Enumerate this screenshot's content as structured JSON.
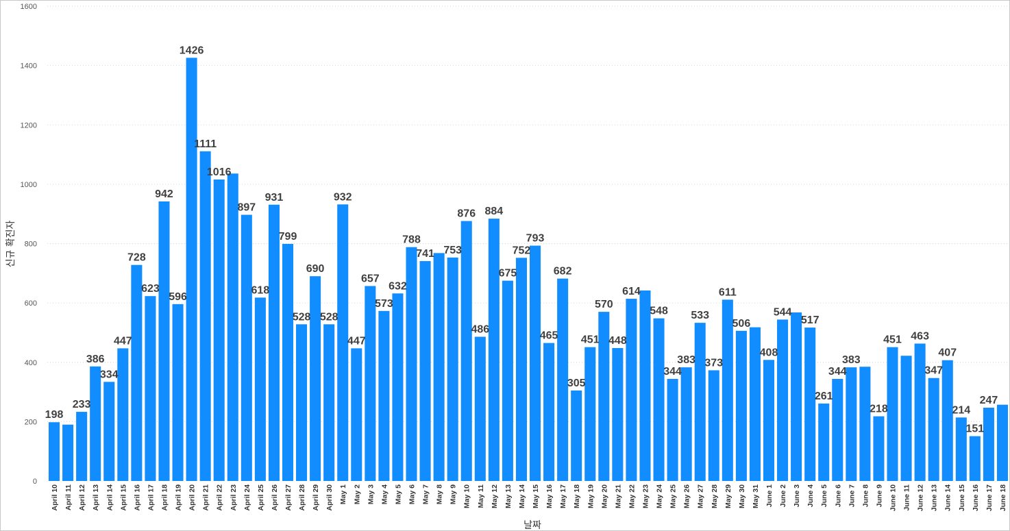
{
  "chart_data": {
    "type": "bar",
    "xlabel": "날짜",
    "ylabel": "신규 확진자",
    "ylim": [
      0,
      1600
    ],
    "yticks": [
      0,
      200,
      400,
      600,
      800,
      1000,
      1200,
      1400,
      1600
    ],
    "grid": true,
    "bar_color": "#118DFF",
    "categories": [
      "April 10",
      "April 11",
      "April 12",
      "April 13",
      "April 14",
      "April 15",
      "April 16",
      "April 17",
      "April 18",
      "April 19",
      "April 20",
      "April 21",
      "April 22",
      "April 23",
      "April 24",
      "April 25",
      "April 26",
      "April 27",
      "April 28",
      "April 29",
      "April 30",
      "May 1",
      "May 2",
      "May 3",
      "May 4",
      "May 5",
      "May 6",
      "May 7",
      "May 8",
      "May 9",
      "May 10",
      "May 11",
      "May 12",
      "May 13",
      "May 14",
      "May 15",
      "May 16",
      "May 17",
      "May 18",
      "May 19",
      "May 20",
      "May 21",
      "May 22",
      "May 23",
      "May 24",
      "May 25",
      "May 26",
      "May 27",
      "May 28",
      "May 29",
      "May 30",
      "May 31",
      "June 1",
      "June 2",
      "June 3",
      "June 4",
      "June 5",
      "June 6",
      "June 7",
      "June 8",
      "June 9",
      "June 10",
      "June 11",
      "June 12",
      "June 13",
      "June 14",
      "June 15",
      "June 16",
      "June 17",
      "June 18"
    ],
    "values": [
      198,
      190,
      233,
      386,
      334,
      447,
      728,
      623,
      942,
      596,
      1426,
      1111,
      1016,
      1036,
      897,
      618,
      931,
      799,
      528,
      690,
      528,
      932,
      447,
      657,
      573,
      632,
      788,
      741,
      768,
      753,
      876,
      486,
      884,
      675,
      752,
      793,
      465,
      682,
      305,
      451,
      570,
      448,
      614,
      642,
      548,
      344,
      383,
      533,
      373,
      611,
      506,
      518,
      408,
      544,
      568,
      517,
      261,
      344,
      383,
      385,
      218,
      451,
      422,
      463,
      347,
      407,
      214,
      151,
      247,
      257
    ],
    "data_labels": [
      "198",
      "",
      "233",
      "386",
      "334",
      "447",
      "728",
      "623",
      "942",
      "596",
      "1426",
      "1111",
      "1016",
      "",
      "897",
      "618",
      "931",
      "799",
      "528",
      "690",
      "528",
      "932",
      "447",
      "657",
      "573",
      "632",
      "788",
      "741",
      "",
      "753",
      "876",
      "486",
      "884",
      "675",
      "752",
      "793",
      "465",
      "682",
      "305",
      "451",
      "570",
      "448",
      "614",
      "",
      "548",
      "344",
      "383",
      "533",
      "373",
      "611",
      "506",
      "",
      "408",
      "544",
      "",
      "517",
      "261",
      "344",
      "383",
      "",
      "218",
      "451",
      "",
      "463",
      "347",
      "407",
      "214",
      "151",
      "247",
      ""
    ]
  }
}
